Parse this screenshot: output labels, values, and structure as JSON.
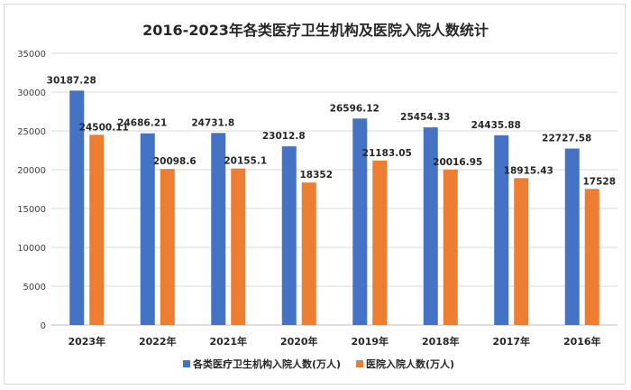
{
  "chart_data": {
    "type": "bar",
    "title": "2016-2023年各类医疗卫生机构及医院入院人数统计",
    "categories": [
      "2023年",
      "2022年",
      "2021年",
      "2020年",
      "2019年",
      "2018年",
      "2017年",
      "2016年"
    ],
    "series": [
      {
        "name": "各类医疗卫生机构入院人数(万人)",
        "color": "#4472c4",
        "values": [
          30187.28,
          24686.21,
          24731.8,
          23012.8,
          26596.12,
          25454.33,
          24435.88,
          22727.58
        ],
        "labels": [
          "30187.28",
          "24686.21",
          "24731.8",
          "23012.8",
          "26596.12",
          "25454.33",
          "24435.88",
          "22727.58"
        ]
      },
      {
        "name": "医院入院人数(万人)",
        "color": "#ed7d31",
        "values": [
          24500.11,
          20098.6,
          20155.1,
          18352,
          21183.05,
          20016.95,
          18915.43,
          17528
        ],
        "labels": [
          "24500.11",
          "20098.6",
          "20155.1",
          "18352",
          "21183.05",
          "20016.95",
          "18915.43",
          "17528"
        ]
      }
    ],
    "ylim": [
      0,
      35000
    ],
    "yticks": [
      "0",
      "5000",
      "10000",
      "15000",
      "20000",
      "25000",
      "30000",
      "35000"
    ],
    "grid": true,
    "legend": "bottom"
  }
}
